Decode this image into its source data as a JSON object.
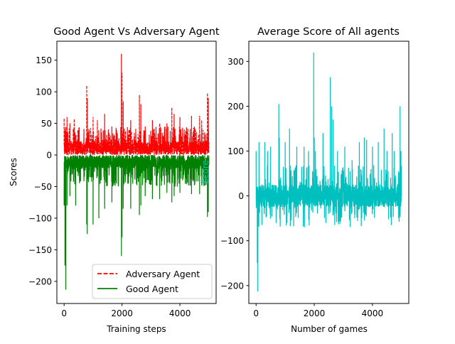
{
  "figure": {
    "background": "#ffffff"
  },
  "chart_data": [
    {
      "type": "line",
      "title": "Good Agent Vs Adversary Agent",
      "xlabel": "Training steps",
      "ylabel": "Scores",
      "xlim": [
        -250,
        5250
      ],
      "ylim": [
        -235,
        180
      ],
      "xticks": [
        0,
        2000,
        4000
      ],
      "xtick_labels": [
        "0",
        "2000",
        "4000"
      ],
      "yticks": [
        -200,
        -150,
        -100,
        -50,
        0,
        50,
        100,
        150
      ],
      "ytick_labels": [
        "−200",
        "−150",
        "−100",
        "−50",
        "0",
        "50",
        "100",
        "150"
      ],
      "grid": false,
      "legend": "lower-right",
      "series": [
        {
          "name": "Adversary Agent",
          "color": "#ff0000",
          "style": "dashed",
          "n_points": 5000,
          "band": [
            0,
            22
          ],
          "noise_max": 45,
          "spikes": [
            [
              0,
              58
            ],
            [
              100,
              60
            ],
            [
              200,
              50
            ],
            [
              350,
              57
            ],
            [
              780,
              110
            ],
            [
              800,
              90
            ],
            [
              1000,
              60
            ],
            [
              1150,
              55
            ],
            [
              1400,
              65
            ],
            [
              1650,
              45
            ],
            [
              1980,
              160
            ],
            [
              2000,
              130
            ],
            [
              2040,
              85
            ],
            [
              2300,
              55
            ],
            [
              2600,
              95
            ],
            [
              2650,
              80
            ],
            [
              2800,
              45
            ],
            [
              3050,
              55
            ],
            [
              3300,
              50
            ],
            [
              3550,
              50
            ],
            [
              3720,
              75
            ],
            [
              3800,
              65
            ],
            [
              4000,
              60
            ],
            [
              4400,
              62
            ],
            [
              4500,
              45
            ],
            [
              4680,
              62
            ],
            [
              4750,
              55
            ],
            [
              4950,
              98
            ],
            [
              4980,
              90
            ],
            [
              5000,
              20
            ]
          ]
        },
        {
          "name": "Good Agent",
          "color": "#008000",
          "style": "solid",
          "n_points": 5000,
          "band": [
            -22,
            0
          ],
          "noise_min": -50,
          "spikes": [
            [
              0,
              -80
            ],
            [
              30,
              -175
            ],
            [
              60,
              -213
            ],
            [
              100,
              -80
            ],
            [
              200,
              -65
            ],
            [
              400,
              -80
            ],
            [
              780,
              -110
            ],
            [
              800,
              -125
            ],
            [
              1000,
              -110
            ],
            [
              1200,
              -100
            ],
            [
              1400,
              -85
            ],
            [
              1650,
              -75
            ],
            [
              1980,
              -160
            ],
            [
              2000,
              -130
            ],
            [
              2040,
              -85
            ],
            [
              2300,
              -85
            ],
            [
              2600,
              -95
            ],
            [
              2650,
              -80
            ],
            [
              2800,
              -65
            ],
            [
              3050,
              -70
            ],
            [
              3300,
              -70
            ],
            [
              3550,
              -60
            ],
            [
              3720,
              -75
            ],
            [
              3800,
              -65
            ],
            [
              4000,
              -60
            ],
            [
              4400,
              -62
            ],
            [
              4680,
              -62
            ],
            [
              4950,
              -98
            ],
            [
              4980,
              -90
            ],
            [
              5000,
              -15
            ]
          ]
        }
      ]
    },
    {
      "type": "line",
      "title": "Average Score of All agents",
      "xlabel": "Number of games",
      "ylabel": "Score",
      "xlim": [
        -250,
        5250
      ],
      "ylim": [
        -240,
        345
      ],
      "xticks": [
        0,
        2000,
        4000
      ],
      "xtick_labels": [
        "0",
        "2000",
        "4000"
      ],
      "yticks": [
        -200,
        -100,
        0,
        100,
        200,
        300
      ],
      "ytick_labels": [
        "−200",
        "−100",
        "0",
        "100",
        "200",
        "300"
      ],
      "grid": false,
      "legend": "none",
      "series": [
        {
          "color": "#00bfbf",
          "style": "solid",
          "n_points": 5000,
          "band": [
            -25,
            25
          ],
          "noise_min": -70,
          "noise_max": 70,
          "spikes": [
            [
              0,
              100
            ],
            [
              40,
              -150
            ],
            [
              60,
              -213
            ],
            [
              100,
              120
            ],
            [
              200,
              -65
            ],
            [
              300,
              120
            ],
            [
              400,
              100
            ],
            [
              500,
              110
            ],
            [
              780,
              205
            ],
            [
              800,
              130
            ],
            [
              1000,
              120
            ],
            [
              1150,
              150
            ],
            [
              1400,
              110
            ],
            [
              1650,
              110
            ],
            [
              1800,
              100
            ],
            [
              1980,
              320
            ],
            [
              2000,
              130
            ],
            [
              2040,
              100
            ],
            [
              2300,
              140
            ],
            [
              2550,
              265
            ],
            [
              2600,
              200
            ],
            [
              2650,
              170
            ],
            [
              2800,
              100
            ],
            [
              3050,
              110
            ],
            [
              3300,
              80
            ],
            [
              3550,
              120
            ],
            [
              3720,
              130
            ],
            [
              3800,
              125
            ],
            [
              4000,
              110
            ],
            [
              4200,
              120
            ],
            [
              4400,
              150
            ],
            [
              4500,
              100
            ],
            [
              4680,
              140
            ],
            [
              4750,
              100
            ],
            [
              4950,
              200
            ],
            [
              4980,
              100
            ],
            [
              5000,
              0
            ]
          ]
        }
      ]
    }
  ]
}
